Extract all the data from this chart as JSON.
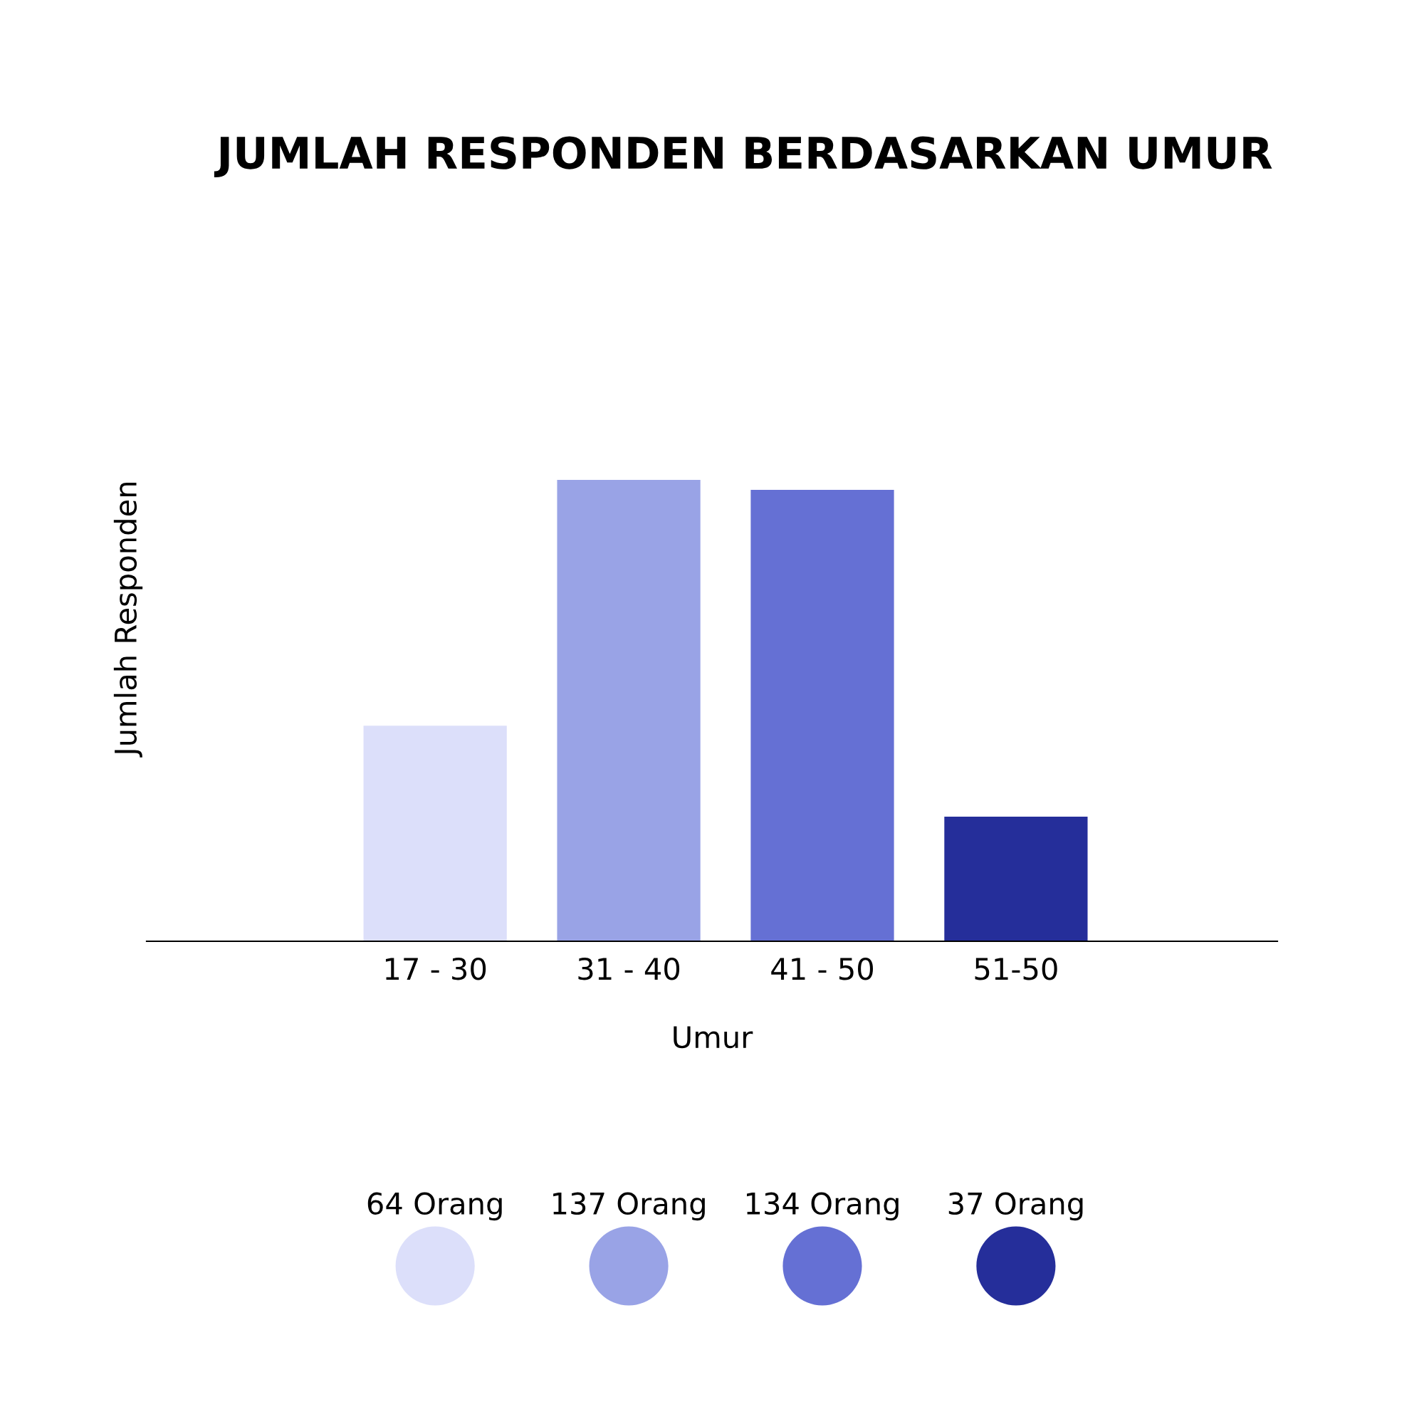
{
  "chart_data": {
    "type": "bar",
    "title": "JUMLAH RESPONDEN BERDASARKAN UMUR",
    "xlabel": "Umur",
    "annotations": [
      "Jumlah Responden"
    ],
    "categories": [
      "17 - 30",
      "31 - 40",
      "41 - 50",
      "51-50"
    ],
    "values": [
      64,
      137,
      134,
      37
    ],
    "colors": [
      "#dcdffa",
      "#99a3e6",
      "#6570d4",
      "#252e9a"
    ],
    "value_labels": [
      "64 Orang",
      "137 Orang",
      "134 Orang",
      "37 Orang"
    ],
    "grid": false,
    "legend": false
  }
}
